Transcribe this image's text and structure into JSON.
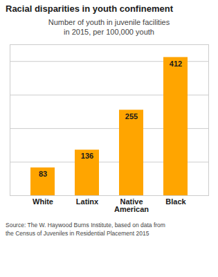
{
  "chart_data": {
    "type": "bar",
    "title": "Racial disparities in youth confinement",
    "subtitle": "Number of youth in juvenile facilities\nin 2015, per 100,000 youth",
    "source": "Source: The W. Haywood Burns Institute, based on data from\nthe Census of Juveniles in Residential Placement 2015",
    "categories": [
      "White",
      "Latinx",
      "Native\nAmerican",
      "Black"
    ],
    "values": [
      83,
      136,
      255,
      412
    ],
    "color": "#FFA500",
    "ylim": [
      0,
      450
    ],
    "yticks": [
      0,
      100,
      200,
      300,
      400
    ],
    "grid": true,
    "data_labels": true,
    "tick_labels": "x"
  }
}
